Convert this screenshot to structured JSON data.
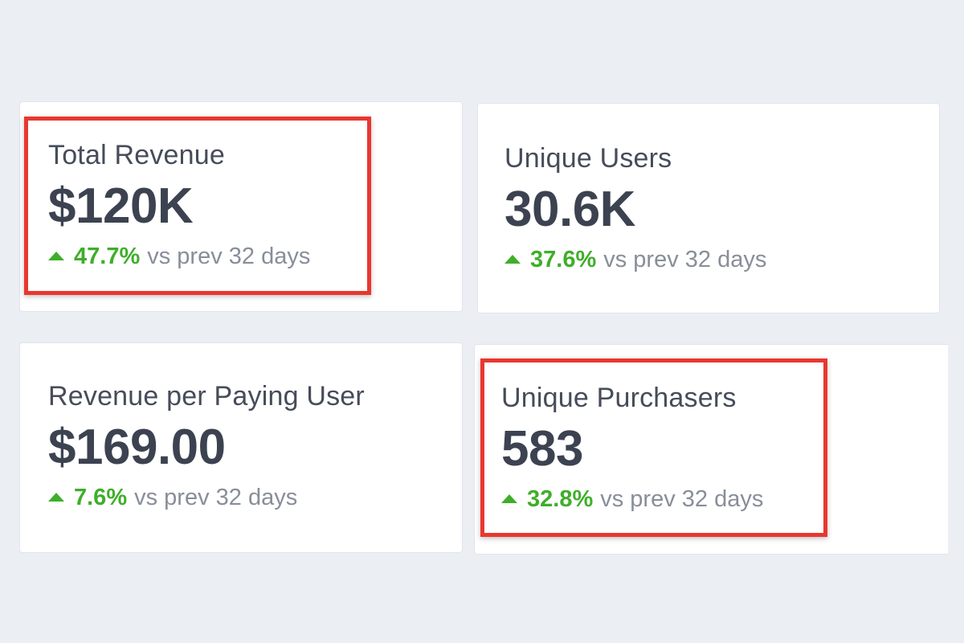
{
  "accent_colors": {
    "positive": "#3fae2a",
    "highlight": "#e8372f",
    "value_text": "#3c4250",
    "muted_text": "#888e99"
  },
  "cards": [
    {
      "title": "Total Revenue",
      "value": "$120K",
      "change": "47.7%",
      "change_direction": "up",
      "change_icon": "caret-up-icon",
      "comparison": "vs prev 32 days",
      "highlighted": true
    },
    {
      "title": "Unique Users",
      "value": "30.6K",
      "change": "37.6%",
      "change_direction": "up",
      "change_icon": "caret-up-icon",
      "comparison": "vs prev 32 days",
      "highlighted": false
    },
    {
      "title": "Revenue per Paying User",
      "value": "$169.00",
      "change": "7.6%",
      "change_direction": "up",
      "change_icon": "caret-up-icon",
      "comparison": "vs prev 32 days",
      "highlighted": false
    },
    {
      "title": "Unique Purchasers",
      "value": "583",
      "change": "32.8%",
      "change_direction": "up",
      "change_icon": "caret-up-icon",
      "comparison": "vs prev 32 days",
      "highlighted": true
    }
  ]
}
